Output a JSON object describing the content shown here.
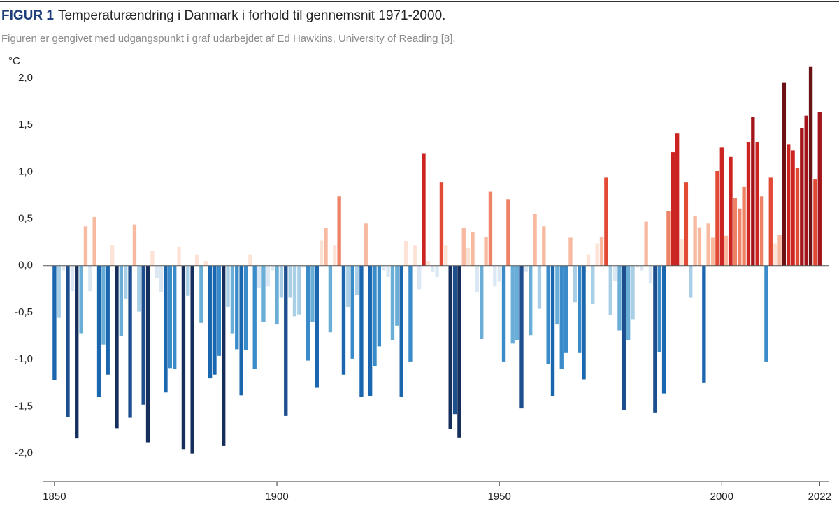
{
  "chart_data": {
    "type": "bar",
    "title_prefix": "FIGUR 1",
    "title": "Temperaturændring i Danmark i forhold til gennemsnit 1971-2000.",
    "subtitle": "Figuren er gengivet med udgangspunkt i graf udarbejdet af Ed Hawkins, University of Reading [8].",
    "y_unit": "°C",
    "x": [
      1850,
      1851,
      1852,
      1853,
      1854,
      1855,
      1856,
      1857,
      1858,
      1859,
      1860,
      1861,
      1862,
      1863,
      1864,
      1865,
      1866,
      1867,
      1868,
      1869,
      1870,
      1871,
      1872,
      1873,
      1874,
      1875,
      1876,
      1877,
      1878,
      1879,
      1880,
      1881,
      1882,
      1883,
      1884,
      1885,
      1886,
      1887,
      1888,
      1889,
      1890,
      1891,
      1892,
      1893,
      1894,
      1895,
      1896,
      1897,
      1898,
      1899,
      1900,
      1901,
      1902,
      1903,
      1904,
      1905,
      1906,
      1907,
      1908,
      1909,
      1910,
      1911,
      1912,
      1913,
      1914,
      1915,
      1916,
      1917,
      1918,
      1919,
      1920,
      1921,
      1922,
      1923,
      1924,
      1925,
      1926,
      1927,
      1928,
      1929,
      1930,
      1931,
      1932,
      1933,
      1934,
      1935,
      1936,
      1937,
      1938,
      1939,
      1940,
      1941,
      1942,
      1943,
      1944,
      1945,
      1946,
      1947,
      1948,
      1949,
      1950,
      1951,
      1952,
      1953,
      1954,
      1955,
      1956,
      1957,
      1958,
      1959,
      1960,
      1961,
      1962,
      1963,
      1964,
      1965,
      1966,
      1967,
      1968,
      1969,
      1970,
      1971,
      1972,
      1973,
      1974,
      1975,
      1976,
      1977,
      1978,
      1979,
      1980,
      1981,
      1982,
      1983,
      1984,
      1985,
      1986,
      1987,
      1988,
      1989,
      1990,
      1991,
      1992,
      1993,
      1994,
      1995,
      1996,
      1997,
      1998,
      1999,
      2000,
      2001,
      2002,
      2003,
      2004,
      2005,
      2006,
      2007,
      2008,
      2009,
      2010,
      2011,
      2012,
      2013,
      2014,
      2015,
      2016,
      2017,
      2018,
      2019,
      2020,
      2021,
      2022
    ],
    "values": [
      -1.22,
      -0.55,
      -0.05,
      -1.61,
      -0.27,
      -1.84,
      -0.72,
      0.42,
      -0.27,
      0.52,
      -1.4,
      -0.84,
      -1.16,
      0.22,
      -1.73,
      -0.75,
      -0.35,
      -1.62,
      0.44,
      -0.49,
      -1.48,
      -1.88,
      0.16,
      -0.13,
      -0.28,
      -1.35,
      -1.09,
      -1.1,
      0.2,
      -1.96,
      -0.32,
      -2.0,
      0.12,
      -0.61,
      0.05,
      -1.2,
      -1.16,
      -0.96,
      -1.92,
      -0.44,
      -0.72,
      -0.89,
      -1.38,
      -0.9,
      0.12,
      -1.1,
      -0.24,
      -0.6,
      -0.22,
      -0.05,
      -0.62,
      -0.34,
      -1.6,
      -0.34,
      -0.54,
      -0.52,
      -0.02,
      -1.01,
      -0.6,
      -1.3,
      0.27,
      0.4,
      -0.71,
      0.22,
      0.74,
      -1.16,
      -0.44,
      -0.99,
      -0.31,
      -1.4,
      0.45,
      -1.39,
      -1.07,
      -0.86,
      -0.05,
      -0.12,
      -0.79,
      -0.64,
      -1.4,
      0.26,
      -1.02,
      0.22,
      -0.25,
      1.2,
      0.05,
      -0.06,
      -0.12,
      0.89,
      0.22,
      -1.74,
      -1.58,
      -1.83,
      0.4,
      0.19,
      0.36,
      -0.28,
      -0.78,
      0.31,
      0.79,
      -0.22,
      -0.17,
      -1.02,
      0.71,
      -0.83,
      -0.79,
      -1.52,
      -0.06,
      -0.74,
      0.55,
      -0.46,
      0.42,
      -1.05,
      -1.39,
      -0.62,
      -1.1,
      -0.93,
      0.3,
      -0.39,
      -0.93,
      -1.21,
      0.12,
      -0.41,
      0.24,
      0.31,
      0.94,
      -0.53,
      -0.16,
      -0.69,
      -1.54,
      -0.79,
      -0.57,
      -0.02,
      -0.05,
      0.47,
      -0.19,
      -1.57,
      -0.92,
      -1.36,
      0.58,
      1.21,
      1.41,
      0.28,
      0.89,
      -0.34,
      0.53,
      0.41,
      -1.25,
      0.45,
      0.3,
      1.01,
      1.26,
      0.32,
      1.16,
      0.72,
      0.61,
      0.84,
      1.32,
      1.59,
      1.32,
      0.74,
      -1.02,
      0.94,
      0.24,
      0.33,
      1.95,
      1.29,
      1.23,
      1.04,
      1.47,
      1.6,
      2.12,
      0.92,
      1.64
    ],
    "color_scale": [
      "#162e5c",
      "#1d4f8f",
      "#1a67b0",
      "#3a8bc9",
      "#6aaed8",
      "#a8cfe6",
      "#dbe8f4",
      "#fde3d6",
      "#f7b9a0",
      "#ee8266",
      "#e34a35",
      "#cc2421",
      "#a3141a",
      "#6a1214"
    ],
    "xlim": [
      1847.5,
      2024
    ],
    "xticks": [
      1850,
      1900,
      1950,
      2000,
      2022
    ],
    "ylim": [
      -2.3,
      2.2
    ],
    "yticks": [
      {
        "value": -2,
        "label": "-2,0"
      },
      {
        "value": -1.5,
        "label": "-1,5"
      },
      {
        "value": -1,
        "label": "-1,0"
      },
      {
        "value": -0.5,
        "label": "-0,5"
      },
      {
        "value": 0,
        "label": "0,0"
      },
      {
        "value": 0.5,
        "label": "0,5"
      },
      {
        "value": 1,
        "label": "1,0"
      },
      {
        "value": 1.5,
        "label": "1,5"
      },
      {
        "value": 2,
        "label": "2,0"
      }
    ]
  }
}
